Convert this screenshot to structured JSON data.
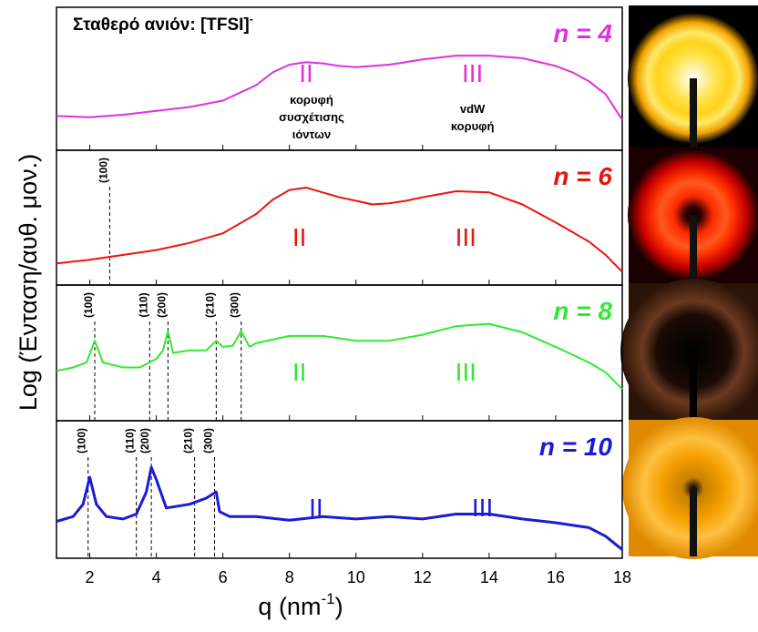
{
  "chart_data": {
    "type": "line",
    "title": "Σταθερό ανιόν: [TFSI]",
    "title_sup": "-",
    "xlabel": "q (nm",
    "xlabel_sup": "-1",
    "xlabel_end": ")",
    "ylabel": "Log (Ένταση/αυθ. μον.)",
    "xlim": [
      1,
      18
    ],
    "xticks": [
      2,
      4,
      6,
      8,
      10,
      12,
      14,
      16,
      18
    ],
    "panels": [
      {
        "label": "n = 4",
        "color": "#e030e0",
        "ylim": [
          0,
          1
        ],
        "x": [
          1,
          2,
          3,
          4,
          5,
          6,
          7,
          7.5,
          8,
          8.5,
          9,
          9.5,
          10,
          10.5,
          11,
          11.5,
          12,
          13,
          14,
          15,
          16,
          16.5,
          17,
          17.5,
          18
        ],
        "values": [
          0.21,
          0.2,
          0.22,
          0.25,
          0.28,
          0.33,
          0.45,
          0.55,
          0.61,
          0.63,
          0.62,
          0.6,
          0.59,
          0.6,
          0.61,
          0.63,
          0.65,
          0.68,
          0.68,
          0.66,
          0.6,
          0.55,
          0.48,
          0.38,
          0.18
        ],
        "peaks": [
          "II",
          "III"
        ],
        "annotations": [
          [
            "κορυφή",
            "συσχέτισης",
            "ιόντων"
          ],
          [
            "vdW",
            "κορυφή"
          ]
        ],
        "reflections": []
      },
      {
        "label": "n = 6",
        "color": "#e8150f",
        "ylim": [
          0,
          1
        ],
        "x": [
          1,
          2,
          3,
          4,
          5,
          6,
          7,
          7.5,
          8,
          8.5,
          9,
          9.5,
          10,
          10.5,
          11,
          11.5,
          12,
          13,
          14,
          15,
          16,
          16.5,
          17,
          17.5,
          18
        ],
        "values": [
          0.12,
          0.15,
          0.19,
          0.23,
          0.29,
          0.37,
          0.53,
          0.65,
          0.73,
          0.75,
          0.71,
          0.67,
          0.64,
          0.61,
          0.62,
          0.64,
          0.67,
          0.72,
          0.71,
          0.61,
          0.46,
          0.38,
          0.3,
          0.19,
          0.05
        ],
        "peaks": [
          "II",
          "III"
        ],
        "reflections": [
          {
            "label": "(100)",
            "q": 2.6
          }
        ]
      },
      {
        "label": "n = 8",
        "color": "#33e833",
        "ylim": [
          0,
          1
        ],
        "x": [
          1,
          1.5,
          1.9,
          2.15,
          2.4,
          3,
          3.5,
          4,
          4.2,
          4.35,
          4.5,
          5,
          5.5,
          5.8,
          6,
          6.3,
          6.55,
          6.8,
          7,
          8,
          9,
          10,
          11,
          12,
          13,
          14,
          15,
          16,
          17,
          17.5,
          18
        ],
        "values": [
          0.35,
          0.38,
          0.42,
          0.6,
          0.42,
          0.38,
          0.38,
          0.45,
          0.52,
          0.68,
          0.5,
          0.52,
          0.52,
          0.6,
          0.55,
          0.56,
          0.68,
          0.55,
          0.58,
          0.64,
          0.64,
          0.6,
          0.6,
          0.65,
          0.72,
          0.74,
          0.67,
          0.55,
          0.42,
          0.34,
          0.2
        ],
        "peaks": [
          "II",
          "III"
        ],
        "reflections": [
          {
            "label": "(100)",
            "q": 2.15
          },
          {
            "label": "(110)",
            "q": 3.8
          },
          {
            "label": "(200)",
            "q": 4.35
          },
          {
            "label": "(210)",
            "q": 5.8
          },
          {
            "label": "(300)",
            "q": 6.55
          }
        ]
      },
      {
        "label": "n = 10",
        "color": "#1a1ad8",
        "ylim": [
          0,
          1
        ],
        "x": [
          1,
          1.5,
          1.8,
          2,
          2.2,
          2.5,
          3,
          3.4,
          3.7,
          3.85,
          4,
          4.3,
          5,
          5.5,
          5.8,
          5.9,
          6.2,
          7,
          8,
          9,
          10,
          11,
          12,
          13,
          14,
          15,
          16,
          17,
          17.5,
          18
        ],
        "values": [
          0.24,
          0.28,
          0.38,
          0.6,
          0.38,
          0.28,
          0.26,
          0.3,
          0.48,
          0.68,
          0.58,
          0.35,
          0.38,
          0.43,
          0.48,
          0.32,
          0.28,
          0.28,
          0.25,
          0.28,
          0.26,
          0.28,
          0.26,
          0.3,
          0.3,
          0.26,
          0.23,
          0.19,
          0.12,
          0.01
        ],
        "peaks": [
          "II",
          "III"
        ],
        "reflections": [
          {
            "label": "(100)",
            "q": 1.95
          },
          {
            "label": "(110)",
            "q": 3.4
          },
          {
            "label": "(200)",
            "q": 3.85
          },
          {
            "label": "(210)",
            "q": 5.15
          },
          {
            "label": "(300)",
            "q": 5.75
          }
        ]
      }
    ]
  }
}
